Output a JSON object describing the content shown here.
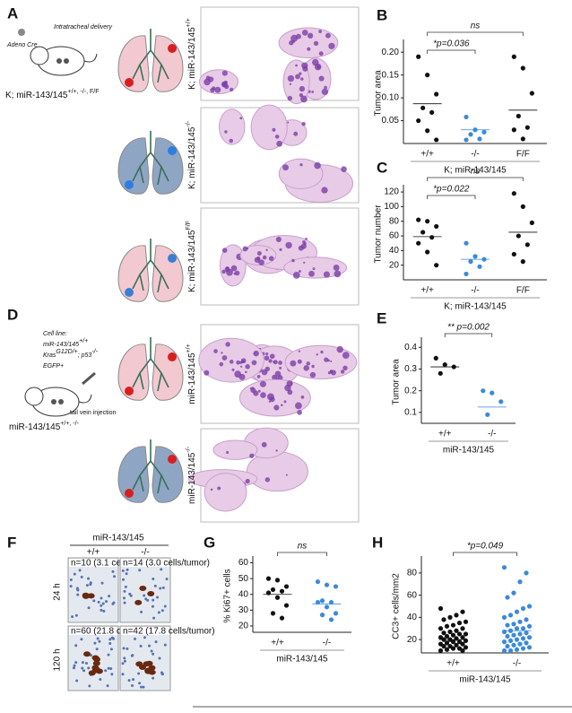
{
  "panels": {
    "A": {
      "letter": "A",
      "delivery": "Intratracheal delivery",
      "vector": "Adeno Cre",
      "genotype": [
        "K; miR-143/145",
        "+/+, -/-, F/F"
      ],
      "image_labels": [
        [
          "K; miR-143/145",
          "+/+"
        ],
        [
          "K; miR-143/145",
          "-/-"
        ],
        [
          "K; miR-143/145",
          "F/F"
        ]
      ]
    },
    "D": {
      "letter": "D",
      "cell_line": "Cell line:",
      "lines": [
        [
          "miR-143/145",
          "+/+"
        ],
        [
          "Kras",
          "G12D/+",
          "; p53",
          "-/-"
        ],
        [
          "EGFP+"
        ]
      ],
      "injection": "tail vein injection",
      "genotype": [
        "miR-143/145",
        "+/+, -/-"
      ],
      "image_labels": [
        [
          "miR-143/145",
          "+/+"
        ],
        [
          "miR-143/145",
          "-/-"
        ]
      ]
    },
    "F": {
      "letter": "F",
      "title": "miR-143/145",
      "columns": [
        "+/+",
        "-/-"
      ],
      "rows": [
        "24 h",
        "120 h"
      ],
      "counts": [
        [
          "n=10 (3.1 cells/tumor)",
          "n=14 (3.0 cells/tumor)"
        ],
        [
          "n=60 (21.8 cells/tumor)",
          "n=42 (17.8 cells/tumor)"
        ]
      ]
    }
  },
  "chart_data": [
    {
      "type": "strip",
      "panel": "B",
      "ylabel": "Tumor area",
      "xlabel": "K; miR-143/145",
      "categories": [
        "+/+",
        "-/-",
        "F/F"
      ],
      "groups": [
        {
          "color": "#111111",
          "values": [
            0.19,
            0.15,
            0.108,
            0.078,
            0.068,
            0.05,
            0.028,
            0.008
          ],
          "center": 0.087
        },
        {
          "color": "#3b8ad9",
          "values": [
            0.058,
            0.03,
            0.025,
            0.02,
            0.01,
            0.008
          ],
          "center": 0.03
        },
        {
          "color": "#111111",
          "values": [
            0.19,
            0.165,
            0.11,
            0.06,
            0.035,
            0.03,
            0.01
          ],
          "center": 0.073
        }
      ],
      "ylim": [
        0,
        0.22
      ],
      "yticks": [
        0.05,
        {
          "value": 0.1,
          "label": "0.10"
        },
        0.15,
        {
          "value": 0.2,
          "label": "0.20"
        }
      ],
      "outer_label": "ns",
      "inner_label": "*p=0.036"
    },
    {
      "type": "strip",
      "panel": "C",
      "ylabel": "Tumor number",
      "xlabel": "K; miR-143/145",
      "categories": [
        "+/+",
        "-/-",
        "F/F"
      ],
      "groups": [
        {
          "color": "#111111",
          "values": [
            82,
            80,
            73,
            65,
            58,
            50,
            38,
            20
          ],
          "center": 59
        },
        {
          "color": "#3b8ad9",
          "values": [
            50,
            32,
            28,
            25,
            18,
            8
          ],
          "center": 28
        },
        {
          "color": "#111111",
          "values": [
            118,
            100,
            78,
            60,
            48,
            35,
            25
          ],
          "center": 65
        }
      ],
      "ylim": [
        0,
        125
      ],
      "yticks": [
        20,
        40,
        60,
        80,
        100,
        120
      ],
      "outer_label": "ns",
      "inner_label": "*p=0.022"
    },
    {
      "type": "strip",
      "panel": "E",
      "ylabel": "Tumor area",
      "xlabel": "miR-143/145",
      "categories": [
        "+/+",
        "-/-"
      ],
      "groups": [
        {
          "color": "#111111",
          "values": [
            0.35,
            0.32,
            0.31,
            0.28
          ],
          "center": 0.31
        },
        {
          "color": "#3b8ad9",
          "values": [
            0.2,
            0.19,
            0.15,
            0.09
          ],
          "center": 0.125
        }
      ],
      "ylim": [
        0.05,
        0.43
      ],
      "yticks": [
        0.1,
        0.2,
        0.3,
        0.4
      ],
      "inner_label": "** p=0.002"
    },
    {
      "type": "strip",
      "panel": "G",
      "ylabel": "% Ki67+ cells",
      "xlabel": "miR-143/145",
      "categories": [
        "+/+",
        "-/-"
      ],
      "groups": [
        {
          "color": "#111111",
          "values": [
            50,
            49,
            45,
            43,
            42,
            41,
            38,
            33,
            28,
            25
          ],
          "center": 40
        },
        {
          "color": "#3b8ad9",
          "values": [
            48,
            46,
            45,
            36,
            35,
            35,
            32,
            28,
            27,
            24
          ],
          "center": 34
        }
      ],
      "ylim": [
        16,
        62
      ],
      "yticks": [
        20,
        30,
        40,
        50,
        60
      ],
      "inner_label": "ns"
    },
    {
      "type": "strip",
      "panel": "H",
      "ylabel": "CC3+ cells/mm2",
      "xlabel": "miR-143/145",
      "categories": [
        "+/+",
        "-/-"
      ],
      "groups": [
        {
          "color": "#111111",
          "values": [
            48,
            45,
            42,
            40,
            38,
            36,
            35,
            33,
            32,
            30,
            30,
            28,
            27,
            26,
            25,
            25,
            24,
            23,
            22,
            22,
            21,
            20,
            20,
            19,
            18,
            18,
            17,
            16,
            16,
            15,
            14,
            14,
            13,
            12,
            12,
            11,
            10,
            10
          ],
          "center": 20
        },
        {
          "color": "#3b8ad9",
          "values": [
            85,
            80,
            72,
            62,
            58,
            50,
            48,
            45,
            42,
            40,
            38,
            36,
            34,
            33,
            32,
            30,
            30,
            28,
            27,
            26,
            25,
            24,
            23,
            22,
            21,
            20,
            19,
            18,
            17,
            16,
            15,
            14,
            13,
            12,
            11,
            10,
            10
          ],
          "center": 28
        }
      ],
      "ylim": [
        8,
        92
      ],
      "yticks": [
        20,
        40,
        60,
        80
      ],
      "inner_label": "*p=0.049"
    }
  ]
}
